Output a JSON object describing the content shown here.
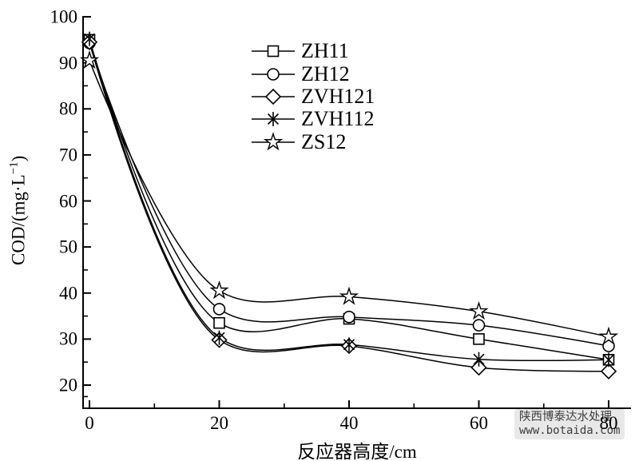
{
  "chart_data": {
    "type": "line",
    "title": "",
    "xlabel": "反应器高度/cm",
    "ylabel": "COD/(mg·L⁻¹)",
    "ylabel_parts": {
      "base": "COD/(mg·L",
      "sup": "−1",
      "end": ")"
    },
    "x": [
      0,
      20,
      40,
      60,
      80
    ],
    "xlim": [
      -1,
      83.5
    ],
    "ylim": [
      15,
      100
    ],
    "x_major_ticks": [
      0,
      20,
      40,
      60,
      80
    ],
    "x_minor_ticks": [
      10,
      30,
      50,
      70
    ],
    "y_major_ticks": [
      20,
      30,
      40,
      50,
      60,
      70,
      80,
      90,
      100
    ],
    "y_minor_ticks": [
      17.5,
      25,
      35,
      45,
      55,
      65,
      75,
      85,
      95
    ],
    "grid": false,
    "legend_position": "upper-center-left, no frame",
    "line_color": "#000000",
    "background_color": "#ffffff",
    "series": [
      {
        "name": "ZH11",
        "marker": "square",
        "values": [
          95.0,
          33.5,
          34.4,
          30.0,
          25.5
        ]
      },
      {
        "name": "ZH12",
        "marker": "circle",
        "values": [
          94.3,
          36.5,
          34.8,
          33.0,
          28.5
        ]
      },
      {
        "name": "ZVH121",
        "marker": "diamond",
        "values": [
          94.5,
          29.8,
          28.5,
          23.8,
          23.0
        ]
      },
      {
        "name": "ZVH112",
        "marker": "asterisk",
        "values": [
          95.2,
          30.3,
          28.8,
          25.6,
          25.5
        ]
      },
      {
        "name": "ZS12",
        "marker": "star",
        "values": [
          90.5,
          40.5,
          39.2,
          36.0,
          30.5
        ]
      }
    ]
  },
  "watermark": {
    "line1": "陕西博泰达水处理",
    "line2": "www.botaida.com"
  }
}
